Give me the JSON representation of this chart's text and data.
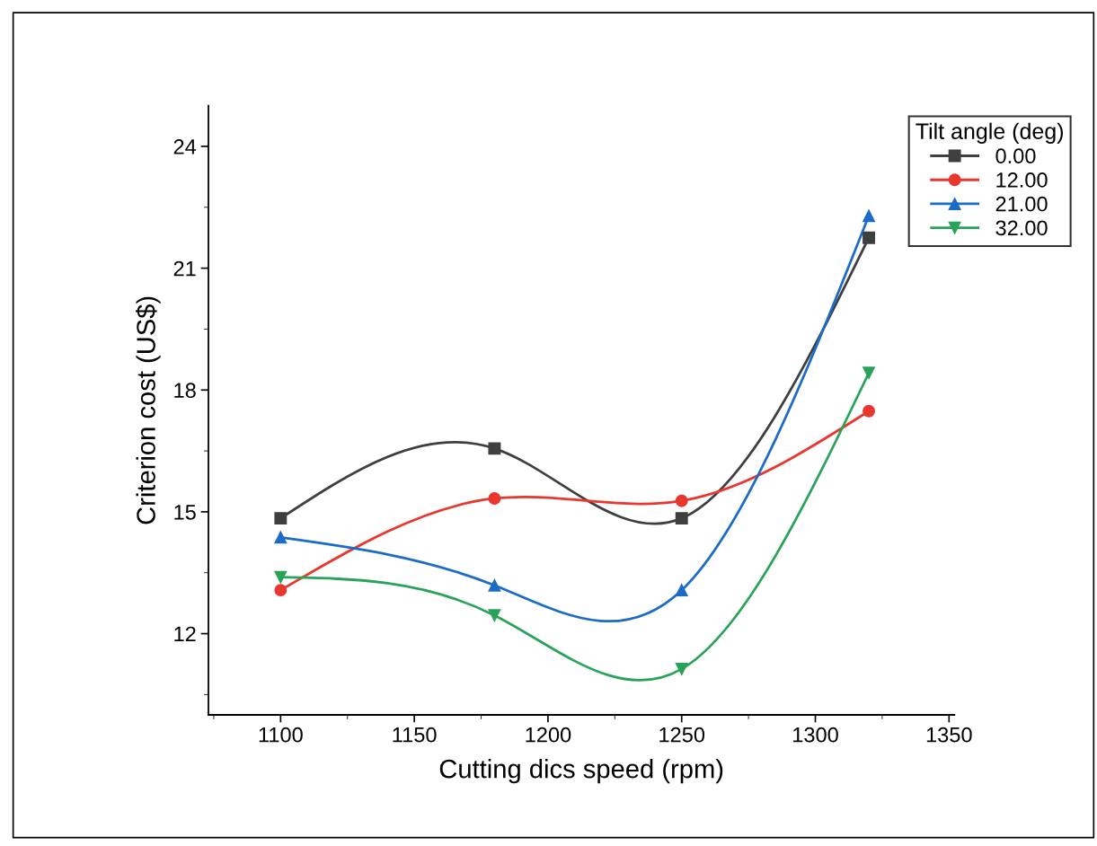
{
  "chart_data": {
    "type": "line",
    "xlabel": "Cutting dics speed (rpm)",
    "ylabel": "Criterion cost (US$)",
    "legend_title": "Tilt angle (deg)",
    "x": [
      1100,
      1180,
      1250,
      1320
    ],
    "series": [
      {
        "name": "0.00",
        "color": "#3f3f3f",
        "marker": "square",
        "values": [
          14.84,
          16.56,
          14.84,
          21.75
        ]
      },
      {
        "name": "12.00",
        "color": "#e8372f",
        "marker": "circle",
        "values": [
          13.07,
          15.33,
          15.27,
          17.48
        ]
      },
      {
        "name": "21.00",
        "color": "#1c6cc7",
        "marker": "triangle",
        "values": [
          14.37,
          13.19,
          13.07,
          22.29
        ]
      },
      {
        "name": "32.00",
        "color": "#2aa35a",
        "marker": "triangle_down",
        "values": [
          13.39,
          12.45,
          11.13,
          18.42
        ]
      }
    ],
    "xlim": [
      1073,
      1352
    ],
    "xticks": [
      1100,
      1150,
      1200,
      1250,
      1300,
      1350
    ],
    "ylim": [
      10,
      25
    ],
    "yticks": [
      12,
      15,
      18,
      21,
      24
    ],
    "legend": "top right",
    "grid": false,
    "line_style": "solid"
  }
}
